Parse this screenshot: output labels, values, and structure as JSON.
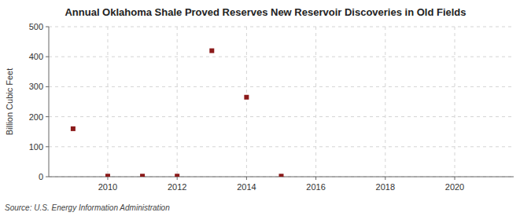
{
  "chart_data": {
    "type": "scatter",
    "title": "Annual Oklahoma Shale Proved Reserves New Reservoir Discoveries in Old Fields",
    "ylabel": "Billion Cubic Feet",
    "source": "Source: U.S. Energy Information Administration",
    "x": [
      2009,
      2010,
      2011,
      2012,
      2013,
      2014,
      2015
    ],
    "values": [
      160,
      2,
      2,
      2,
      420,
      265,
      2
    ],
    "color": "#8b1a1a",
    "marker": "square",
    "xlim": [
      2008.3,
      2021.7
    ],
    "ylim": [
      0,
      500
    ],
    "xticks": [
      2010,
      2012,
      2014,
      2016,
      2018,
      2020
    ],
    "yticks": [
      0,
      100,
      200,
      300,
      400,
      500
    ],
    "grid": true
  }
}
